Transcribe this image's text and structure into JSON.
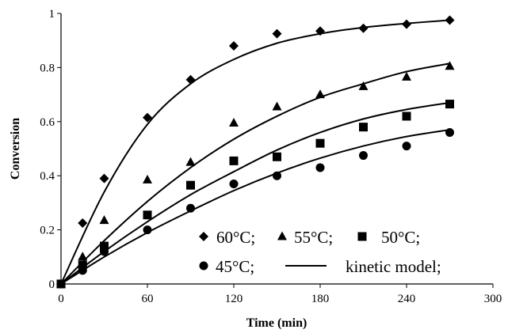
{
  "chart_data": {
    "type": "scatter",
    "xlabel": "Time (min)",
    "ylabel": "Conversion",
    "xlim": [
      0,
      300
    ],
    "ylim": [
      0,
      1
    ],
    "x_ticks": [
      "0",
      "60",
      "120",
      "180",
      "240",
      "300"
    ],
    "y_ticks": [
      "0",
      "0.2",
      "0.4",
      "0.6",
      "0.8",
      "1"
    ],
    "x_tick_values": [
      0,
      60,
      120,
      180,
      240,
      300
    ],
    "y_tick_values": [
      0,
      0.2,
      0.4,
      0.6,
      0.8,
      1
    ],
    "grid": false,
    "legend_position": "lower-right, inside plot",
    "legend_rows": [
      [
        {
          "marker": "diamond",
          "label": "60°C;"
        },
        {
          "marker": "triangle",
          "label": "55°C;"
        },
        {
          "marker": "square",
          "label": "50°C;"
        }
      ],
      [
        {
          "marker": "circle",
          "label": "45°C;"
        },
        {
          "marker": "line",
          "label": "kinetic model;"
        }
      ]
    ],
    "series": [
      {
        "name": "60°C;",
        "marker": "diamond",
        "points": [
          [
            0,
            0
          ],
          [
            15,
            0.225
          ],
          [
            30,
            0.39
          ],
          [
            60,
            0.615
          ],
          [
            90,
            0.755
          ],
          [
            120,
            0.88
          ],
          [
            150,
            0.925
          ],
          [
            180,
            0.935
          ],
          [
            210,
            0.945
          ],
          [
            240,
            0.96
          ],
          [
            270,
            0.975
          ]
        ],
        "model": [
          [
            0,
            0
          ],
          [
            30,
            0.34
          ],
          [
            60,
            0.59
          ],
          [
            90,
            0.74
          ],
          [
            120,
            0.83
          ],
          [
            150,
            0.89
          ],
          [
            180,
            0.925
          ],
          [
            210,
            0.948
          ],
          [
            240,
            0.963
          ],
          [
            270,
            0.975
          ]
        ]
      },
      {
        "name": "55°C;",
        "marker": "triangle",
        "points": [
          [
            0,
            0
          ],
          [
            15,
            0.1
          ],
          [
            30,
            0.235
          ],
          [
            60,
            0.385
          ],
          [
            90,
            0.45
          ],
          [
            120,
            0.595
          ],
          [
            150,
            0.655
          ],
          [
            180,
            0.7
          ],
          [
            210,
            0.73
          ],
          [
            240,
            0.765
          ],
          [
            270,
            0.805
          ]
        ],
        "model": [
          [
            0,
            0
          ],
          [
            30,
            0.16
          ],
          [
            60,
            0.305
          ],
          [
            90,
            0.43
          ],
          [
            120,
            0.535
          ],
          [
            150,
            0.62
          ],
          [
            180,
            0.69
          ],
          [
            210,
            0.74
          ],
          [
            240,
            0.785
          ],
          [
            270,
            0.815
          ]
        ]
      },
      {
        "name": "50°C;",
        "marker": "square",
        "points": [
          [
            0,
            0
          ],
          [
            15,
            0.07
          ],
          [
            30,
            0.14
          ],
          [
            60,
            0.255
          ],
          [
            90,
            0.365
          ],
          [
            120,
            0.455
          ],
          [
            150,
            0.47
          ],
          [
            180,
            0.52
          ],
          [
            210,
            0.58
          ],
          [
            240,
            0.62
          ],
          [
            270,
            0.665
          ]
        ],
        "model": [
          [
            0,
            0
          ],
          [
            30,
            0.12
          ],
          [
            60,
            0.23
          ],
          [
            90,
            0.33
          ],
          [
            120,
            0.415
          ],
          [
            150,
            0.495
          ],
          [
            180,
            0.56
          ],
          [
            210,
            0.61
          ],
          [
            240,
            0.645
          ],
          [
            270,
            0.67
          ]
        ]
      },
      {
        "name": "45°C;",
        "marker": "circle",
        "points": [
          [
            0,
            0
          ],
          [
            15,
            0.05
          ],
          [
            30,
            0.12
          ],
          [
            60,
            0.2
          ],
          [
            90,
            0.28
          ],
          [
            120,
            0.37
          ],
          [
            150,
            0.4
          ],
          [
            180,
            0.43
          ],
          [
            210,
            0.475
          ],
          [
            240,
            0.51
          ],
          [
            270,
            0.56
          ]
        ],
        "model": [
          [
            0,
            0
          ],
          [
            30,
            0.1
          ],
          [
            60,
            0.19
          ],
          [
            90,
            0.27
          ],
          [
            120,
            0.345
          ],
          [
            150,
            0.41
          ],
          [
            180,
            0.465
          ],
          [
            210,
            0.51
          ],
          [
            240,
            0.545
          ],
          [
            270,
            0.57
          ]
        ]
      }
    ]
  }
}
